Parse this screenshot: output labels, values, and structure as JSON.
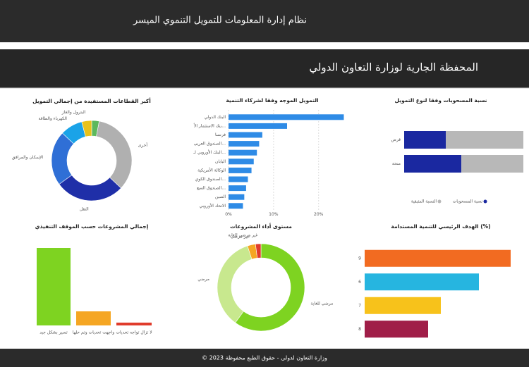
{
  "header": {
    "title": "نظام إدارة المعلومات للتمويل التنموي الميسر"
  },
  "dashboard": {
    "title": "المحفظة الجارية لوزارة التعاون الدولي"
  },
  "chart_data": [
    {
      "type": "donut",
      "title": "أكبر القطاعات المستفيدة من إجمالي التمويل",
      "categories": [
        null,
        "أخرى",
        "النقل",
        "الإسكان والمرافق",
        "الكهرباء والطاقة",
        "البترول والغاز"
      ],
      "values": [
        3,
        34,
        28,
        22,
        9,
        4
      ],
      "colors": [
        "#5cb85c",
        "#b0b0b0",
        "#1f2fa8",
        "#2f6fd6",
        "#1aa3e8",
        "#e8c21a"
      ]
    },
    {
      "type": "hbar",
      "title": "التمويل الموجه وفقا لشركاء التنمية",
      "categories": [
        "البنك الدولي",
        "بنك الاستثمار الأ...",
        "فرنسا",
        "الصندوق العربي...",
        "البنك الأوروبي لـ...",
        "اليابان",
        "الوكالة الأمريكية",
        "الصندوق الكوي...",
        "الصندوق السع...",
        "الصين",
        "الاتحاد الأوروبي"
      ],
      "values": [
        25.6,
        13,
        7.5,
        6.8,
        6.3,
        5.6,
        5.1,
        4.3,
        3.9,
        3.5,
        3.2
      ],
      "color": "#2e8be6",
      "xlim": [
        0,
        26
      ],
      "xticks": [
        {
          "value": 0,
          "label": "0%"
        },
        {
          "value": 10,
          "label": "10%"
        },
        {
          "value": 20,
          "label": "20%"
        }
      ],
      "grid": true
    },
    {
      "type": "stacked-hbar",
      "title": "نسبة المسحوبات وفقا لنوع التمويل",
      "categories": [
        "قرض",
        "منحة"
      ],
      "series": [
        {
          "name": "نسبة المسحوبات",
          "color": "#1a28a0",
          "values": [
            35,
            48
          ]
        },
        {
          "name": "النسبة المتبقية",
          "color": "#b8b8b8",
          "values": [
            65,
            52
          ]
        }
      ],
      "legend": "bottom"
    },
    {
      "type": "vbar",
      "title": "إجمالي المشروعات حسب الموقف التنفيذي",
      "categories": [
        "تسير بشكل جيد",
        "واجهت تحديات وتم حلها",
        "لا تزال تواجه تحديات"
      ],
      "values": [
        110,
        20,
        4
      ],
      "colors": [
        "#7ed321",
        "#f5a623",
        "#e03c2c"
      ]
    },
    {
      "type": "donut",
      "title": "مستوى أداء المشروعات",
      "categories": [
        "مرضي للغاية",
        "مرضي",
        "غير مرضي",
        "غير مرضي للغاية"
      ],
      "values": [
        60,
        35,
        3,
        2
      ],
      "colors": [
        "#7ed321",
        "#c8e88e",
        "#f5a623",
        "#e03c2c"
      ]
    },
    {
      "type": "hbar",
      "title": "الهدف الرئيسي للتنمية المستدامة (%)",
      "categories": [
        "9",
        "6",
        "7",
        "8"
      ],
      "values": [
        23,
        18,
        12,
        10
      ],
      "colors": [
        "#f26b21",
        "#26b5e0",
        "#f7c21b",
        "#a01e48"
      ]
    }
  ],
  "footer": {
    "text": "© وزارة التعاون لدولى - حقوق الطبع محفوظة 2023"
  }
}
